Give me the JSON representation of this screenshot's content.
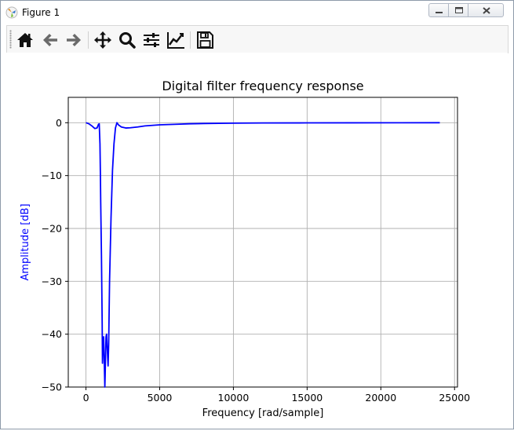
{
  "window": {
    "title": "Figure 1",
    "icon": "matplotlib-figure-icon",
    "controls": [
      "minimize-icon",
      "maximize-icon",
      "close-icon"
    ]
  },
  "toolbar": {
    "buttons": [
      {
        "name": "home",
        "icon": "home-icon"
      },
      {
        "name": "back",
        "icon": "arrow-left-icon"
      },
      {
        "name": "forward",
        "icon": "arrow-right-icon"
      },
      {
        "name": "pan",
        "icon": "move-icon"
      },
      {
        "name": "zoom",
        "icon": "zoom-icon"
      },
      {
        "name": "subplots",
        "icon": "sliders-icon"
      },
      {
        "name": "edit-axes",
        "icon": "chart-line-icon"
      },
      {
        "name": "save",
        "icon": "save-icon"
      }
    ]
  },
  "chart_data": {
    "type": "line",
    "title": "Digital filter frequency response",
    "xlabel": "Frequency [rad/sample]",
    "ylabel": "Amplitude [dB]",
    "xlim": [
      -1200,
      25200
    ],
    "ylim": [
      -50,
      4.8
    ],
    "xticks": [
      0,
      5000,
      10000,
      15000,
      20000,
      25000
    ],
    "xtick_labels": [
      "0",
      "5000",
      "10000",
      "15000",
      "20000",
      "25000"
    ],
    "yticks": [
      0,
      -10,
      -20,
      -30,
      -40,
      -50
    ],
    "ytick_labels": [
      "0",
      "−10",
      "−20",
      "−30",
      "−40",
      "−50"
    ],
    "grid": true,
    "line_color": "#0000ff",
    "ylabel_color": "#0000ff",
    "series": [
      {
        "x": [
          0,
          200,
          400,
          600,
          750,
          850,
          900,
          950,
          980,
          1000,
          1050,
          1100,
          1120,
          1150,
          1200,
          1240,
          1280,
          1300,
          1330,
          1360,
          1400,
          1450,
          1500,
          1540,
          1600,
          1700,
          1800,
          1900,
          2000,
          2100,
          2200,
          2400,
          2700,
          3000,
          3500,
          4000,
          5000,
          6000,
          7000,
          8000,
          10000,
          12000,
          15000,
          18000,
          21000,
          24000
        ],
        "y": [
          0,
          -0.2,
          -0.6,
          -1.1,
          -1.0,
          -0.3,
          -0.2,
          -4,
          -10,
          -15,
          -25,
          -38,
          -45.5,
          -42,
          -40.5,
          -45,
          -50,
          -48,
          -44,
          -40.5,
          -40,
          -43,
          -46,
          -42,
          -30,
          -18,
          -9,
          -4,
          -1,
          0,
          -0.4,
          -0.8,
          -1.0,
          -0.95,
          -0.8,
          -0.6,
          -0.4,
          -0.3,
          -0.2,
          -0.15,
          -0.08,
          -0.05,
          -0.03,
          -0.02,
          -0.01,
          0
        ]
      }
    ]
  }
}
